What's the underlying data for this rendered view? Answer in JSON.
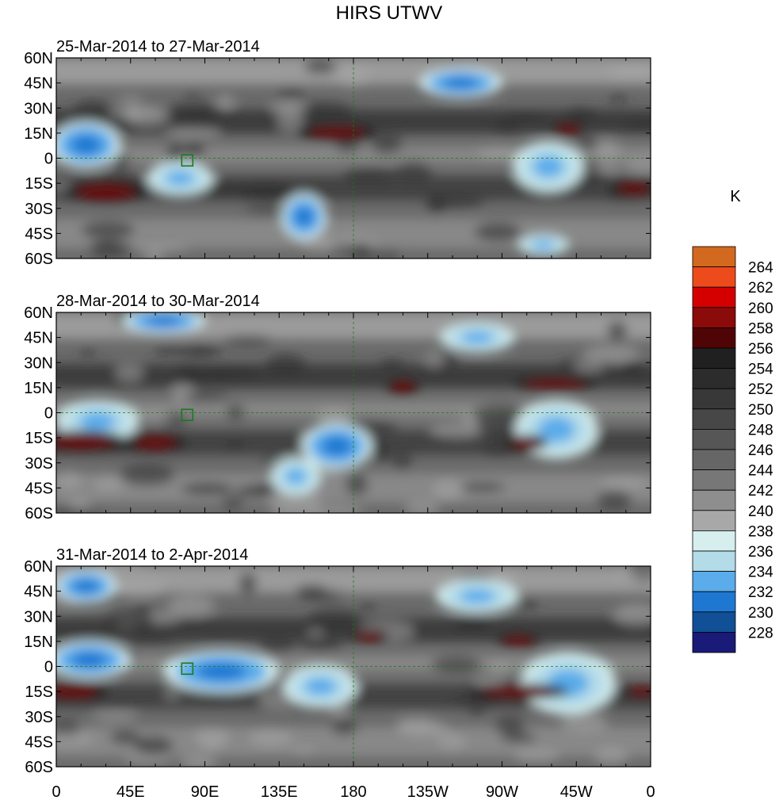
{
  "chart_data": {
    "type": "heatmap",
    "title": "HIRS UTWV",
    "colorbar": {
      "unit": "K",
      "levels": [
        "264",
        "262",
        "260",
        "258",
        "256",
        "254",
        "252",
        "250",
        "248",
        "246",
        "244",
        "242",
        "240",
        "238",
        "236",
        "234",
        "232",
        "230",
        "228"
      ],
      "colors": [
        "#d2691e",
        "#ee4b1c",
        "#d40000",
        "#8b0a0a",
        "#4f0505",
        "#202020",
        "#2c2c2c",
        "#383838",
        "#474747",
        "#565656",
        "#666666",
        "#777777",
        "#8e8e8e",
        "#a8a8a8",
        "#d6eeee",
        "#b4dbe8",
        "#5aacea",
        "#1e78d2",
        "#114f96",
        "#1a1a78"
      ]
    },
    "x_tick_labels": [
      "0",
      "45E",
      "90E",
      "135E",
      "180",
      "135W",
      "90W",
      "45W",
      "0"
    ],
    "y_tick_labels": [
      "60N",
      "45N",
      "30N",
      "15N",
      "0",
      "15S",
      "30S",
      "45S",
      "60S"
    ],
    "xlim": [
      0,
      360
    ],
    "ylim": [
      -60,
      60
    ],
    "panels": [
      {
        "subtitle": "25-Mar-2014 to 27-Mar-2014",
        "features": [
          {
            "type": "moist",
            "lon": 18,
            "lat": 8,
            "w": 34,
            "h": 22,
            "level": 2
          },
          {
            "type": "moist",
            "lon": 75,
            "lat": -12,
            "w": 32,
            "h": 16,
            "level": 1
          },
          {
            "type": "moist",
            "lon": 150,
            "lat": -35,
            "w": 22,
            "h": 22,
            "level": 2
          },
          {
            "type": "moist",
            "lon": 245,
            "lat": 45,
            "w": 40,
            "h": 14,
            "level": 2
          },
          {
            "type": "moist",
            "lon": 298,
            "lat": -5,
            "w": 34,
            "h": 24,
            "level": 1
          },
          {
            "type": "moist",
            "lon": 295,
            "lat": -52,
            "w": 24,
            "h": 10,
            "level": 1
          },
          {
            "type": "dry",
            "lon": 170,
            "lat": 15,
            "w": 34,
            "h": 6
          },
          {
            "type": "dry",
            "lon": 30,
            "lat": -20,
            "w": 36,
            "h": 8
          },
          {
            "type": "dry",
            "lon": 350,
            "lat": -18,
            "w": 20,
            "h": 6
          },
          {
            "type": "dry",
            "lon": 310,
            "lat": 17,
            "w": 14,
            "h": 5
          }
        ]
      },
      {
        "subtitle": "28-Mar-2014 to 30-Mar-2014",
        "features": [
          {
            "type": "moist",
            "lon": 65,
            "lat": 55,
            "w": 40,
            "h": 12,
            "level": 2
          },
          {
            "type": "moist",
            "lon": 25,
            "lat": -5,
            "w": 40,
            "h": 20,
            "level": 1
          },
          {
            "type": "moist",
            "lon": 170,
            "lat": -20,
            "w": 34,
            "h": 22,
            "level": 2
          },
          {
            "type": "moist",
            "lon": 145,
            "lat": -38,
            "w": 24,
            "h": 18,
            "level": 1
          },
          {
            "type": "moist",
            "lon": 255,
            "lat": 45,
            "w": 36,
            "h": 14,
            "level": 1
          },
          {
            "type": "moist",
            "lon": 303,
            "lat": -10,
            "w": 40,
            "h": 28,
            "level": 1
          },
          {
            "type": "dry",
            "lon": 15,
            "lat": -17,
            "w": 40,
            "h": 8
          },
          {
            "type": "dry",
            "lon": 60,
            "lat": -18,
            "w": 26,
            "h": 7
          },
          {
            "type": "dry",
            "lon": 302,
            "lat": 17,
            "w": 36,
            "h": 5
          },
          {
            "type": "dry",
            "lon": 285,
            "lat": -18,
            "w": 18,
            "h": 6
          },
          {
            "type": "dry",
            "lon": 210,
            "lat": 15,
            "w": 14,
            "h": 6
          }
        ]
      },
      {
        "subtitle": "31-Mar-2014 to 2-Apr-2014",
        "features": [
          {
            "type": "moist",
            "lon": 18,
            "lat": 48,
            "w": 30,
            "h": 16,
            "level": 2
          },
          {
            "type": "moist",
            "lon": 20,
            "lat": 4,
            "w": 40,
            "h": 18,
            "level": 2
          },
          {
            "type": "moist",
            "lon": 100,
            "lat": -3,
            "w": 56,
            "h": 20,
            "level": 2
          },
          {
            "type": "moist",
            "lon": 160,
            "lat": -12,
            "w": 36,
            "h": 20,
            "level": 1
          },
          {
            "type": "moist",
            "lon": 255,
            "lat": 42,
            "w": 40,
            "h": 16,
            "level": 1
          },
          {
            "type": "moist",
            "lon": 310,
            "lat": -10,
            "w": 46,
            "h": 30,
            "level": 1
          },
          {
            "type": "dry",
            "lon": 10,
            "lat": -15,
            "w": 30,
            "h": 7
          },
          {
            "type": "dry",
            "lon": 280,
            "lat": -15,
            "w": 44,
            "h": 6
          },
          {
            "type": "dry",
            "lon": 355,
            "lat": -15,
            "w": 16,
            "h": 5
          },
          {
            "type": "dry",
            "lon": 190,
            "lat": 18,
            "w": 16,
            "h": 5
          },
          {
            "type": "dry",
            "lon": 280,
            "lat": 15,
            "w": 18,
            "h": 5
          }
        ]
      }
    ]
  }
}
